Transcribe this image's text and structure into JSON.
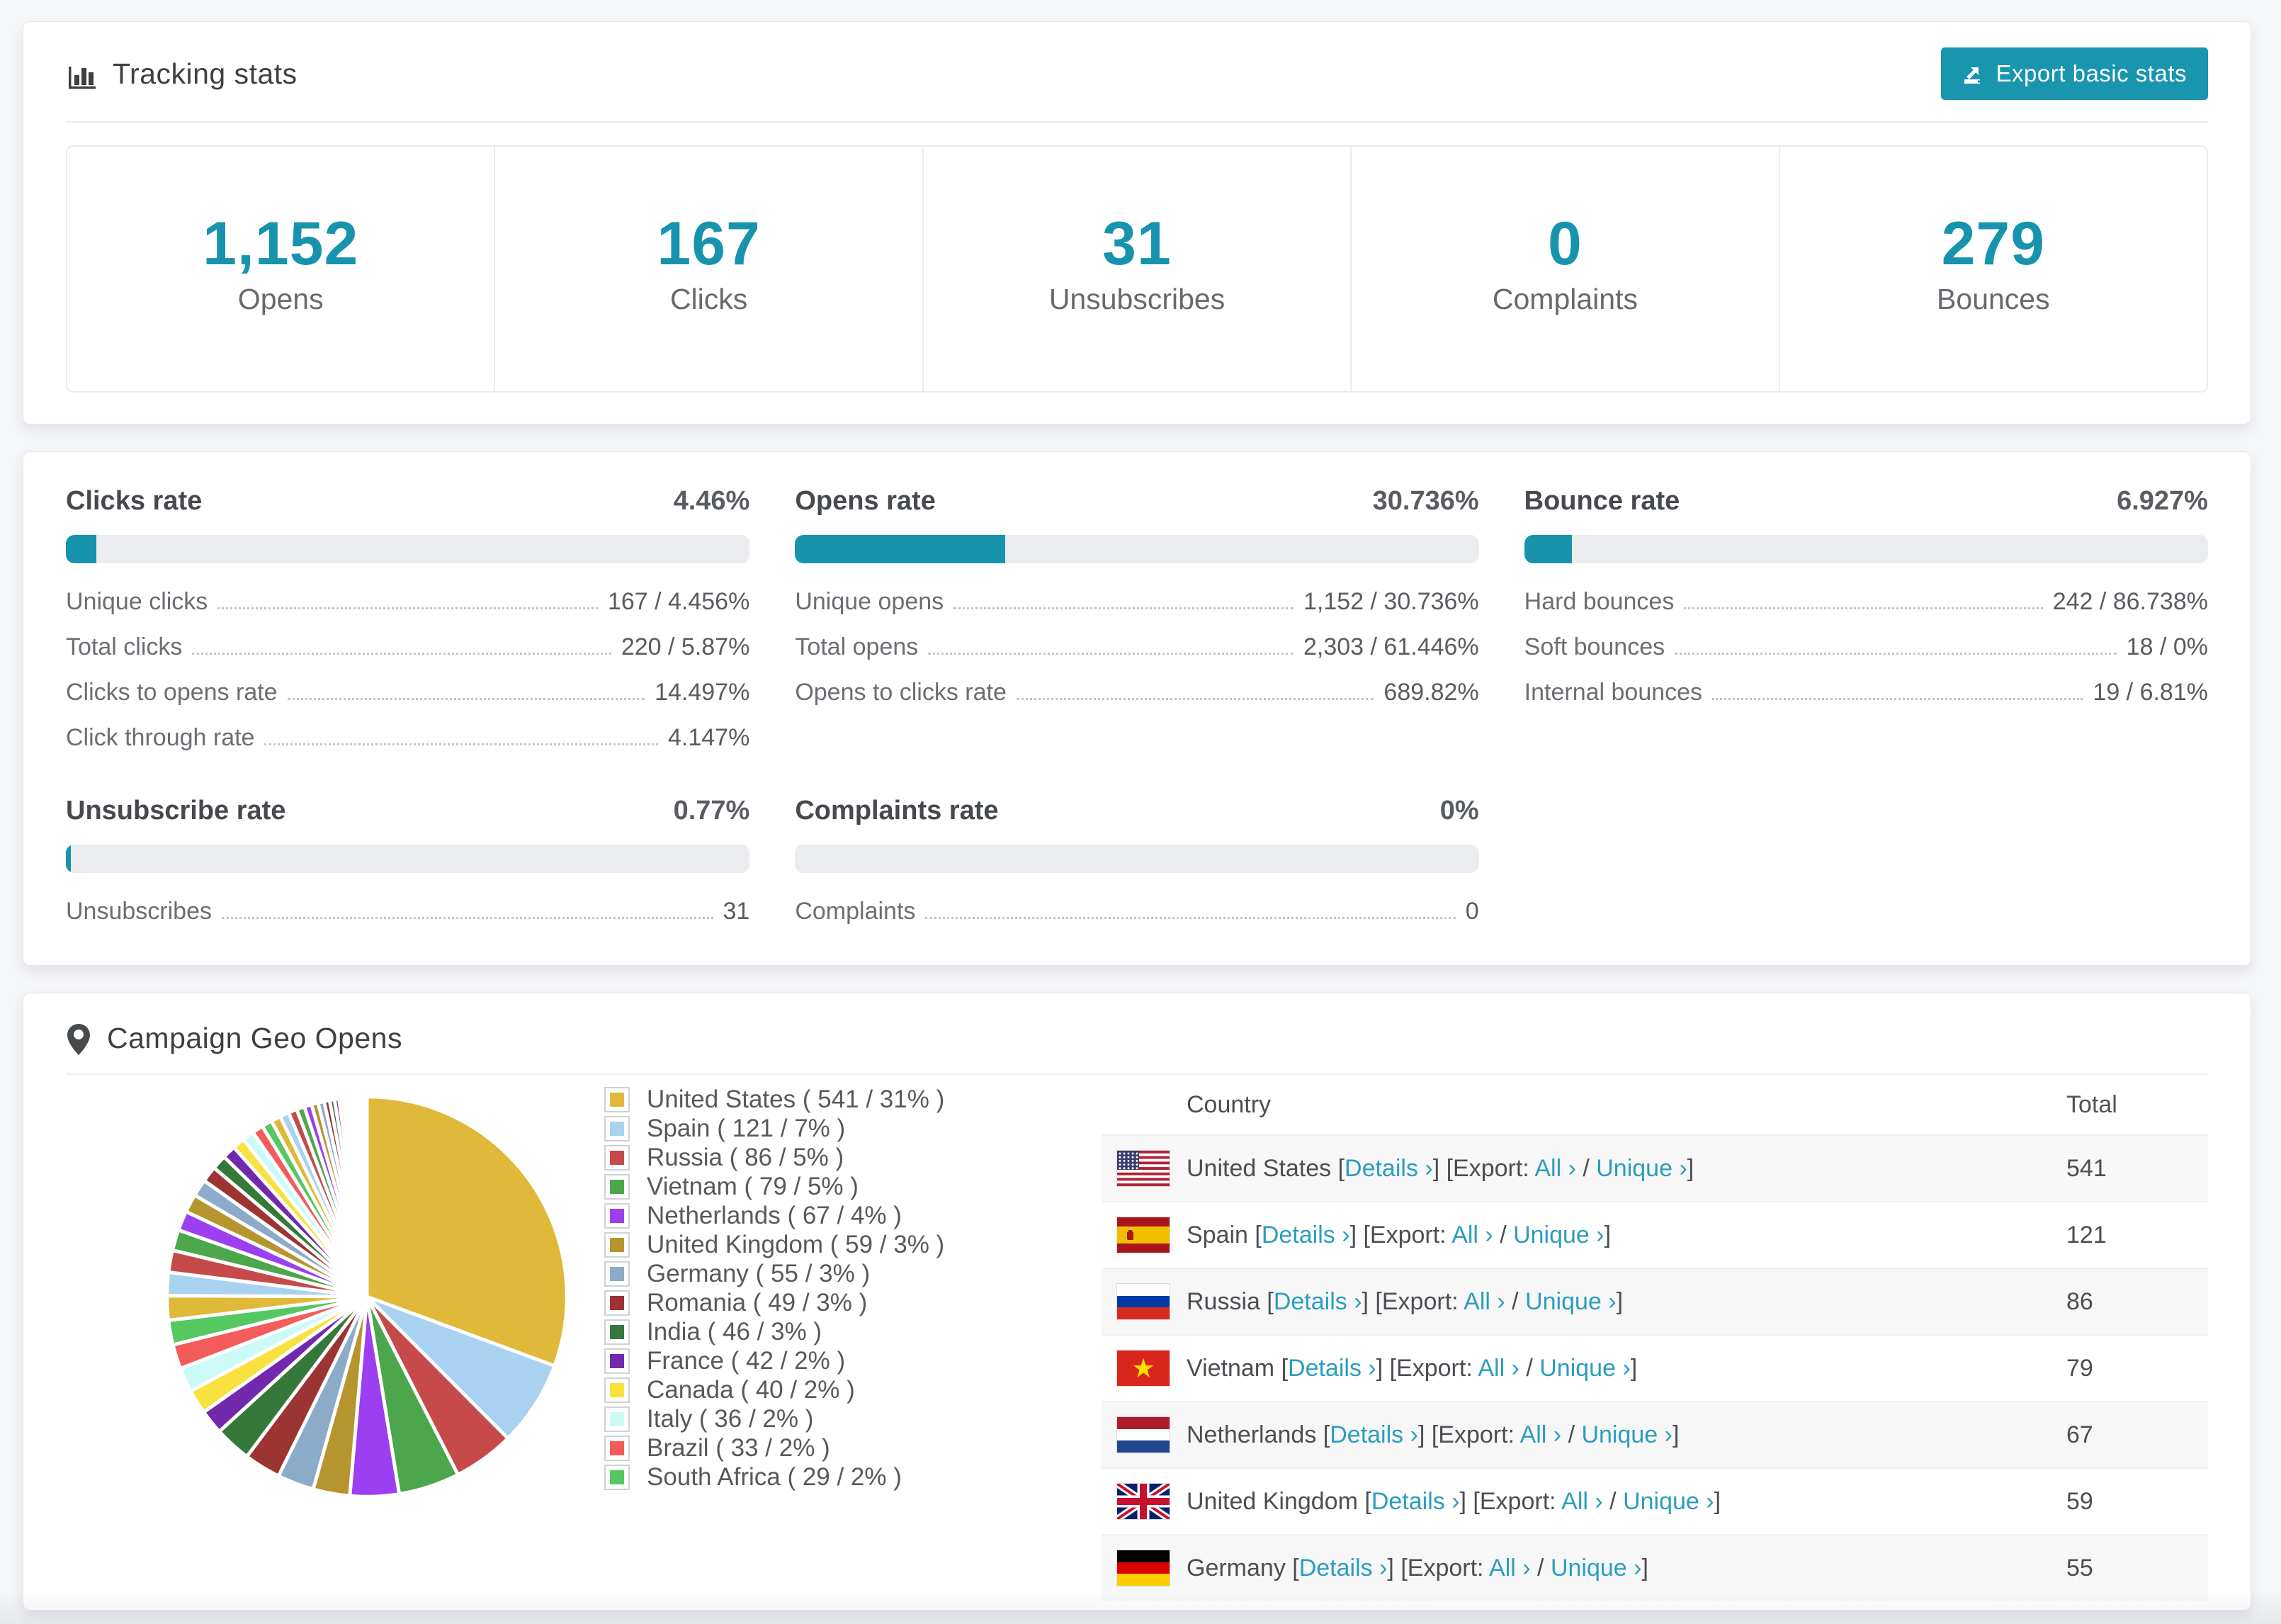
{
  "colors": {
    "accent": "#1793ad",
    "button_bg": "#1995ad",
    "link": "#2b9dbe",
    "bar_track": "#eaecef",
    "page_bg": "#f5f6f8"
  },
  "tracking": {
    "title": "Tracking stats",
    "export_button": "Export basic stats",
    "stats": [
      {
        "value": "1,152",
        "label": "Opens"
      },
      {
        "value": "167",
        "label": "Clicks"
      },
      {
        "value": "31",
        "label": "Unsubscribes"
      },
      {
        "value": "0",
        "label": "Complaints"
      },
      {
        "value": "279",
        "label": "Bounces"
      }
    ]
  },
  "rates": {
    "blocks": [
      {
        "title": "Clicks rate",
        "value": "4.46%",
        "percent": 4.46,
        "metrics": [
          [
            "Unique clicks",
            "167 / 4.456%"
          ],
          [
            "Total clicks",
            "220 / 5.87%"
          ],
          [
            "Clicks to opens rate",
            "14.497%"
          ],
          [
            "Click through rate",
            "4.147%"
          ]
        ]
      },
      {
        "title": "Opens rate",
        "value": "30.736%",
        "percent": 30.736,
        "metrics": [
          [
            "Unique opens",
            "1,152 / 30.736%"
          ],
          [
            "Total opens",
            "2,303 / 61.446%"
          ],
          [
            "Opens to clicks rate",
            "689.82%"
          ]
        ]
      },
      {
        "title": "Bounce rate",
        "value": "6.927%",
        "percent": 6.927,
        "metrics": [
          [
            "Hard bounces",
            "242 / 86.738%"
          ],
          [
            "Soft bounces",
            "18 / 0%"
          ],
          [
            "Internal bounces",
            "19 / 6.81%"
          ]
        ]
      },
      {
        "title": "Unsubscribe rate",
        "value": "0.77%",
        "percent": 0.77,
        "metrics": [
          [
            "Unsubscribes",
            "31"
          ]
        ]
      },
      {
        "title": "Complaints rate",
        "value": "0%",
        "percent": 0,
        "metrics": [
          [
            "Complaints",
            "0"
          ]
        ]
      }
    ]
  },
  "geo": {
    "title": "Campaign Geo Opens",
    "table": {
      "country_header": "Country",
      "total_header": "Total",
      "details_label": "Details",
      "export_label": "Export:",
      "all_label": "All",
      "unique_label": "Unique",
      "chevron": "›",
      "rows": [
        {
          "flag": "us",
          "country": "United States",
          "total": "541"
        },
        {
          "flag": "es",
          "country": "Spain",
          "total": "121"
        },
        {
          "flag": "ru",
          "country": "Russia",
          "total": "86"
        },
        {
          "flag": "vn",
          "country": "Vietnam",
          "total": "79"
        },
        {
          "flag": "nl",
          "country": "Netherlands",
          "total": "67"
        },
        {
          "flag": "gb",
          "country": "United Kingdom",
          "total": "59"
        },
        {
          "flag": "de",
          "country": "Germany",
          "total": "55"
        }
      ]
    }
  },
  "chart_data": {
    "type": "pie",
    "title": "Campaign Geo Opens",
    "legend_position": "right",
    "series": [
      {
        "name": "United States",
        "count": 541,
        "percent": 31,
        "color": "#e0b93a"
      },
      {
        "name": "Spain",
        "count": 121,
        "percent": 7,
        "color": "#a8d2f0"
      },
      {
        "name": "Russia",
        "count": 86,
        "percent": 5,
        "color": "#c74a4a"
      },
      {
        "name": "Vietnam",
        "count": 79,
        "percent": 5,
        "color": "#4ca64c"
      },
      {
        "name": "Netherlands",
        "count": 67,
        "percent": 4,
        "color": "#9b3ff0"
      },
      {
        "name": "United Kingdom",
        "count": 59,
        "percent": 3,
        "color": "#b6952f"
      },
      {
        "name": "Germany",
        "count": 55,
        "percent": 3,
        "color": "#8cabc9"
      },
      {
        "name": "Romania",
        "count": 49,
        "percent": 3,
        "color": "#9c3434"
      },
      {
        "name": "India",
        "count": 46,
        "percent": 3,
        "color": "#35783a"
      },
      {
        "name": "France",
        "count": 42,
        "percent": 2,
        "color": "#7229ad"
      },
      {
        "name": "Canada",
        "count": 40,
        "percent": 2,
        "color": "#f9e13f"
      },
      {
        "name": "Italy",
        "count": 36,
        "percent": 2,
        "color": "#ccfbf7"
      },
      {
        "name": "Brazil",
        "count": 33,
        "percent": 2,
        "color": "#f45b5b"
      },
      {
        "name": "South Africa",
        "count": 29,
        "percent": 2,
        "color": "#55c862"
      }
    ],
    "others_percents": [
      2.0,
      1.9,
      1.8,
      1.7,
      1.6,
      1.5,
      1.4,
      1.3,
      1.2,
      1.1,
      1.0,
      0.95,
      0.9,
      0.85,
      0.8,
      0.75,
      0.7,
      0.65,
      0.6,
      0.55,
      0.5,
      0.45,
      0.4,
      0.36,
      0.33,
      0.3,
      0.27,
      0.24,
      0.21,
      0.18,
      0.15,
      0.13,
      0.11,
      0.09,
      0.08,
      0.07,
      0.06,
      0.05
    ],
    "palette": [
      "#e0b93a",
      "#a8d2f0",
      "#c74a4a",
      "#4ca64c",
      "#9b3ff0",
      "#b6952f",
      "#8cabc9",
      "#9c3434",
      "#35783a",
      "#7229ad",
      "#f9e13f",
      "#ccfbf7",
      "#f45b5b",
      "#55c862"
    ]
  }
}
